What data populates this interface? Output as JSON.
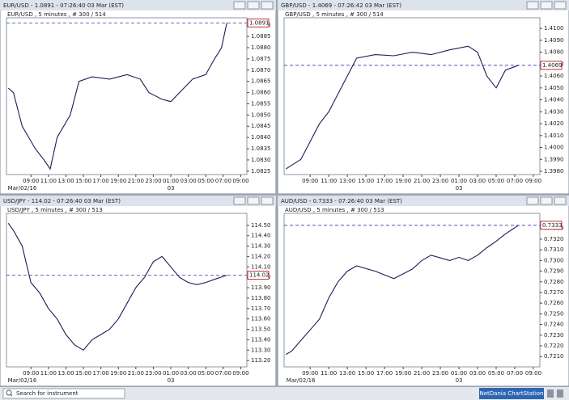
{
  "chart_data": [
    {
      "type": "line",
      "title": "EUR/USD - 1.0891 - 07:26:40 03 Mar (EST)",
      "subtitle": "EUR/USD , 5 minutes , # 300 / 514",
      "x": [
        6.4,
        7,
        8,
        9.5,
        10.5,
        11.2,
        12,
        13.5,
        14.5,
        16,
        18,
        20,
        21.5,
        22.5,
        24,
        25,
        26,
        27.5,
        29,
        30,
        30.8,
        31.4
      ],
      "values": [
        1.0862,
        1.086,
        1.0845,
        1.0835,
        1.083,
        1.0826,
        1.084,
        1.085,
        1.0865,
        1.0867,
        1.0866,
        1.0868,
        1.0866,
        1.086,
        1.0857,
        1.0856,
        1.086,
        1.0866,
        1.0868,
        1.0875,
        1.088,
        1.0891
      ],
      "color": "#1c1c5a",
      "last": 1.0891,
      "xlim": [
        6.2,
        33.7
      ],
      "xticks": [
        {
          "value": 9,
          "label": "09:00"
        },
        {
          "value": 11,
          "label": "11:00"
        },
        {
          "value": 13,
          "label": "13:00"
        },
        {
          "value": 15,
          "label": "15:00"
        },
        {
          "value": 17,
          "label": "17:00"
        },
        {
          "value": 19,
          "label": "19:00"
        },
        {
          "value": 21,
          "label": "21:00"
        },
        {
          "value": 23,
          "label": "23:00"
        },
        {
          "value": 25,
          "label": "01:00"
        },
        {
          "value": 27,
          "label": "03:00"
        },
        {
          "value": 29,
          "label": "05:00"
        },
        {
          "value": 31,
          "label": "07:00"
        },
        {
          "value": 33,
          "label": "09:00"
        }
      ],
      "xdates": [
        {
          "value": 8,
          "label": "Mar/02/16"
        },
        {
          "value": 25,
          "label": "03"
        }
      ],
      "ylim": [
        1.08235,
        1.08933
      ],
      "yticks": [
        {
          "value": 1.0825,
          "label": "1.0825"
        },
        {
          "value": 1.083,
          "label": "1.0830"
        },
        {
          "value": 1.0835,
          "label": "1.0835"
        },
        {
          "value": 1.084,
          "label": "1.0840"
        },
        {
          "value": 1.0845,
          "label": "1.0845"
        },
        {
          "value": 1.085,
          "label": "1.0850"
        },
        {
          "value": 1.0855,
          "label": "1.0855"
        },
        {
          "value": 1.086,
          "label": "1.0860"
        },
        {
          "value": 1.0865,
          "label": "1.0865"
        },
        {
          "value": 1.087,
          "label": "1.0870"
        },
        {
          "value": 1.0875,
          "label": "1.0875"
        },
        {
          "value": 1.088,
          "label": "1.0880"
        },
        {
          "value": 1.0885,
          "label": "1.0885"
        },
        {
          "value": 1.089,
          "label": "1.0890"
        }
      ]
    },
    {
      "type": "line",
      "title": "GBP/USD - 1.4069 - 07:26:42 03 Mar (EST)",
      "subtitle": "GBP/USD , 5 minutes , # 300 / 514",
      "x": [
        6.4,
        7,
        8,
        9,
        10,
        11,
        12,
        13,
        14,
        16,
        18,
        20,
        22,
        24,
        26,
        27,
        28,
        29,
        30,
        31.4
      ],
      "values": [
        1.3982,
        1.3985,
        1.399,
        1.4005,
        1.402,
        1.403,
        1.4045,
        1.406,
        1.4075,
        1.4078,
        1.4077,
        1.408,
        1.4078,
        1.4082,
        1.4085,
        1.408,
        1.406,
        1.405,
        1.4065,
        1.4069
      ],
      "color": "#1c1c5a",
      "last": 1.4069,
      "xlim": [
        6.2,
        33.7
      ],
      "xticks": [
        {
          "value": 9,
          "label": "09:00"
        },
        {
          "value": 11,
          "label": "11:00"
        },
        {
          "value": 13,
          "label": "13:00"
        },
        {
          "value": 15,
          "label": "15:00"
        },
        {
          "value": 17,
          "label": "17:00"
        },
        {
          "value": 19,
          "label": "19:00"
        },
        {
          "value": 21,
          "label": "21:00"
        },
        {
          "value": 23,
          "label": "23:00"
        },
        {
          "value": 25,
          "label": "01:00"
        },
        {
          "value": 27,
          "label": "03:00"
        },
        {
          "value": 29,
          "label": "05:00"
        },
        {
          "value": 31,
          "label": "07:00"
        },
        {
          "value": 33,
          "label": "09:00"
        }
      ],
      "xdates": [
        {
          "value": 25,
          "label": "03"
        }
      ],
      "ylim": [
        1.39773,
        1.41089
      ],
      "yticks": [
        {
          "value": 1.398,
          "label": "1.3980"
        },
        {
          "value": 1.399,
          "label": "1.3990"
        },
        {
          "value": 1.4,
          "label": "1.4000"
        },
        {
          "value": 1.401,
          "label": "1.4010"
        },
        {
          "value": 1.402,
          "label": "1.4020"
        },
        {
          "value": 1.403,
          "label": "1.4030"
        },
        {
          "value": 1.404,
          "label": "1.4040"
        },
        {
          "value": 1.405,
          "label": "1.4050"
        },
        {
          "value": 1.406,
          "label": "1.4060"
        },
        {
          "value": 1.407,
          "label": "1.4070"
        },
        {
          "value": 1.408,
          "label": "1.4080"
        },
        {
          "value": 1.409,
          "label": "1.4090"
        },
        {
          "value": 1.41,
          "label": "1.4100"
        }
      ]
    },
    {
      "type": "line",
      "title": "USD/JPY - 114.02 - 07:26:40 03 Mar (EST)",
      "subtitle": "USD/JPY , 5 minutes , # 300 / 513",
      "x": [
        6.4,
        7,
        8,
        9,
        10,
        11,
        12,
        13,
        14,
        15,
        16,
        17,
        18,
        19,
        20,
        21,
        22,
        23,
        24,
        25,
        26,
        27,
        28,
        29,
        30,
        31.4
      ],
      "values": [
        114.52,
        114.45,
        114.3,
        113.95,
        113.85,
        113.7,
        113.6,
        113.45,
        113.35,
        113.3,
        113.4,
        113.45,
        113.5,
        113.6,
        113.75,
        113.9,
        114.0,
        114.15,
        114.2,
        114.1,
        114.0,
        113.95,
        113.93,
        113.95,
        113.98,
        114.02
      ],
      "color": "#1c1c5a",
      "last": 114.02,
      "xlim": [
        6.2,
        33.7
      ],
      "xticks": [
        {
          "value": 9,
          "label": "09:00"
        },
        {
          "value": 11,
          "label": "11:00"
        },
        {
          "value": 13,
          "label": "13:00"
        },
        {
          "value": 15,
          "label": "15:00"
        },
        {
          "value": 17,
          "label": "17:00"
        },
        {
          "value": 19,
          "label": "19:00"
        },
        {
          "value": 21,
          "label": "21:00"
        },
        {
          "value": 23,
          "label": "23:00"
        },
        {
          "value": 25,
          "label": "01:00"
        },
        {
          "value": 27,
          "label": "03:00"
        },
        {
          "value": 29,
          "label": "05:00"
        },
        {
          "value": 31,
          "label": "07:00"
        },
        {
          "value": 33,
          "label": "09:00"
        }
      ],
      "xdates": [
        {
          "value": 8,
          "label": "Mar/02/16"
        },
        {
          "value": 25,
          "label": "03"
        }
      ],
      "ylim": [
        113.139,
        114.615
      ],
      "yticks": [
        {
          "value": 113.2,
          "label": "113.20"
        },
        {
          "value": 113.3,
          "label": "113.30"
        },
        {
          "value": 113.4,
          "label": "113.40"
        },
        {
          "value": 113.5,
          "label": "113.50"
        },
        {
          "value": 113.6,
          "label": "113.60"
        },
        {
          "value": 113.7,
          "label": "113.70"
        },
        {
          "value": 113.8,
          "label": "113.80"
        },
        {
          "value": 113.9,
          "label": "113.90"
        },
        {
          "value": 114,
          "label": "114.00"
        },
        {
          "value": 114.1,
          "label": "114.10"
        },
        {
          "value": 114.2,
          "label": "114.20"
        },
        {
          "value": 114.3,
          "label": "114.30"
        },
        {
          "value": 114.4,
          "label": "114.40"
        },
        {
          "value": 114.5,
          "label": "114.50"
        }
      ]
    },
    {
      "type": "line",
      "title": "AUD/USD - 0.7333 - 07:26:40 03 Mar (EST)",
      "subtitle": "AUD/USD , 5 minutes , # 300 / 513",
      "x": [
        6.4,
        7,
        8,
        9,
        10,
        11,
        12,
        13,
        14,
        16,
        18,
        20,
        21,
        22,
        24,
        25,
        26,
        27,
        28,
        29,
        30,
        31.4
      ],
      "values": [
        0.7212,
        0.7215,
        0.7225,
        0.7235,
        0.7245,
        0.7265,
        0.728,
        0.729,
        0.7295,
        0.729,
        0.7283,
        0.7292,
        0.73,
        0.7305,
        0.73,
        0.7303,
        0.73,
        0.7305,
        0.7312,
        0.7318,
        0.7325,
        0.7333
      ],
      "color": "#1c1c5a",
      "last": 0.7333,
      "xlim": [
        6.2,
        33.7
      ],
      "xticks": [
        {
          "value": 9,
          "label": "09:00"
        },
        {
          "value": 11,
          "label": "11:00"
        },
        {
          "value": 13,
          "label": "13:00"
        },
        {
          "value": 15,
          "label": "15:00"
        },
        {
          "value": 17,
          "label": "17:00"
        },
        {
          "value": 19,
          "label": "19:00"
        },
        {
          "value": 21,
          "label": "21:00"
        },
        {
          "value": 23,
          "label": "23:00"
        },
        {
          "value": 25,
          "label": "01:00"
        },
        {
          "value": 27,
          "label": "03:00"
        },
        {
          "value": 29,
          "label": "05:00"
        },
        {
          "value": 31,
          "label": "07:00"
        },
        {
          "value": 33,
          "label": "09:00"
        }
      ],
      "xdates": [
        {
          "value": 8,
          "label": "Mar/02/16"
        },
        {
          "value": 25,
          "label": "03"
        }
      ],
      "ylim": [
        0.72003,
        0.73442
      ],
      "yticks": [
        {
          "value": 0.721,
          "label": "0.7210"
        },
        {
          "value": 0.722,
          "label": "0.7220"
        },
        {
          "value": 0.723,
          "label": "0.7230"
        },
        {
          "value": 0.724,
          "label": "0.7240"
        },
        {
          "value": 0.725,
          "label": "0.7250"
        },
        {
          "value": 0.726,
          "label": "0.7260"
        },
        {
          "value": 0.727,
          "label": "0.7270"
        },
        {
          "value": 0.728,
          "label": "0.7280"
        },
        {
          "value": 0.729,
          "label": "0.7290"
        },
        {
          "value": 0.73,
          "label": "0.7300"
        },
        {
          "value": 0.731,
          "label": "0.7310"
        },
        {
          "value": 0.732,
          "label": "0.7320"
        },
        {
          "value": 0.733,
          "label": "0.7330"
        }
      ]
    }
  ],
  "app": {
    "search_placeholder": "Search for instrument",
    "brand": "NetDania ChartStation"
  }
}
